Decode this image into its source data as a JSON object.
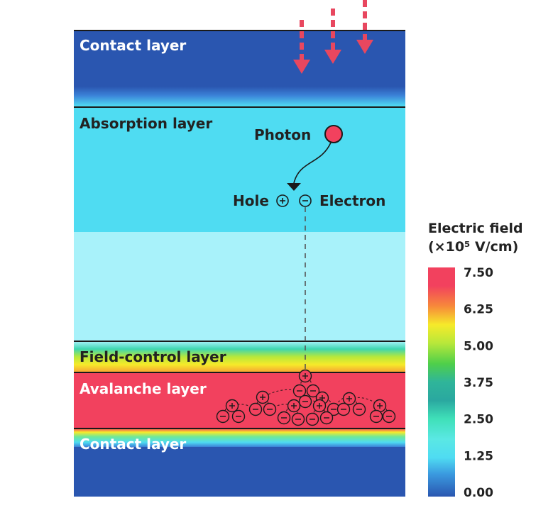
{
  "layers": {
    "contact_top": "Contact layer",
    "absorption": "Absorption layer",
    "field_control": "Field-control layer",
    "avalanche": "Avalanche layer",
    "contact_bottom": "Contact layer"
  },
  "particles": {
    "photon": "Photon",
    "hole": "Hole",
    "electron": "Electron"
  },
  "legend": {
    "title_line1": "Electric field",
    "title_line2": "(×10⁵ V/cm)",
    "ticks": [
      "7.50",
      "6.25",
      "5.00",
      "3.75",
      "2.50",
      "1.25",
      "0.00"
    ]
  },
  "colors": {
    "contact": "#2a56b0",
    "absorption": "#4fdcf2",
    "absorption_lower": "#a8f2fa",
    "avalanche": "#f2415e",
    "photon": "#f2415e",
    "arrow": "#e8475f"
  }
}
